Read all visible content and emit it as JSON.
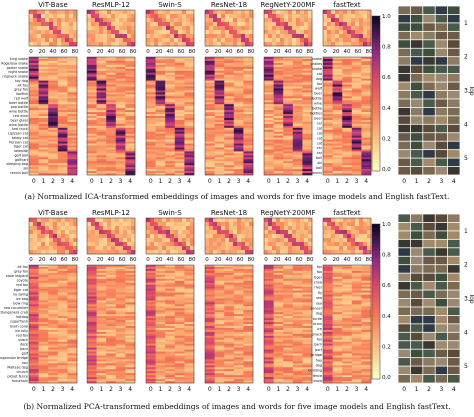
{
  "models": [
    "ViT-Base",
    "ResMLP-12",
    "Swin-S",
    "ResNet-18",
    "RegNetY-200MF",
    "fastText"
  ],
  "top_ticks": [
    "0",
    "20",
    "40",
    "60",
    "80"
  ],
  "bottom_ticks": [
    "0",
    "1",
    "2",
    "3",
    "4"
  ],
  "colorbar_ticks": [
    "1.0",
    "0.8",
    "0.6",
    "0.4",
    "0.2",
    "0.0"
  ],
  "grid_side": {
    "x_ticks": [
      "0",
      "1",
      "2",
      "3",
      "4"
    ],
    "y_ticks": [
      "1",
      "2",
      "3",
      "4",
      "5"
    ],
    "top_label": "Top"
  },
  "panels": [
    {
      "caption": "(a) Normalized ICA-transformed embeddings of images and words for five image models and English fastText.",
      "image_row_labels": [
        "king snake",
        "Rogerosa snake",
        "garter snake",
        "night snake",
        "ringneck snake",
        "toy dog",
        "kit fox",
        "grey fox",
        "lionfish",
        "red wolf",
        "beer bottle",
        "pop bottle",
        "wine bottle",
        "red wine",
        "beer glass",
        "wine bottle",
        "tow truck",
        "Lipizzan cat",
        "tabby cat",
        "Persian cat",
        "tiger cat",
        "lakeside",
        "golf ball",
        "golfcart",
        "sleeping bag",
        "ski",
        "tennis ball"
      ],
      "word_row_labels": [
        "snake",
        "snakes",
        "snake",
        "cat",
        "dog",
        "fox",
        "wolf",
        "beer",
        "bottle",
        "wine",
        "bottle",
        "bottles",
        "beer",
        "car",
        "cat",
        "cat",
        "cat",
        "cat",
        "car",
        "car",
        "ball",
        "ski",
        "ball",
        "tennis"
      ]
    },
    {
      "caption": "(b) Normalized PCA-transformed embeddings of images and words for five image models and English fastText.",
      "image_row_labels": [
        "kit fox",
        "grey fox",
        "stole leopard",
        "coyote",
        "red fox",
        "tiger cat",
        "no swing",
        "ice bag",
        "bow ring",
        "sea cucumber",
        "Dungeness crab",
        "hotdog",
        "sugarfresh",
        "brain coral",
        "ice lolly",
        "red fox",
        "snack",
        "dock",
        "barn",
        "golf",
        "suspension bridge",
        "hay",
        "Maltese dog",
        "church",
        "picket fence",
        "mountain"
      ],
      "word_row_labels": [
        "fox",
        "fox",
        "tiger",
        "crow",
        "river",
        "fly",
        "sea",
        "sea",
        "cancer",
        "dog",
        "turtle",
        "brain",
        "ice",
        "snack",
        "fox",
        "barn",
        "port",
        "bridge",
        "hay",
        "dog",
        "building",
        "fence",
        "snow"
      ]
    }
  ]
}
